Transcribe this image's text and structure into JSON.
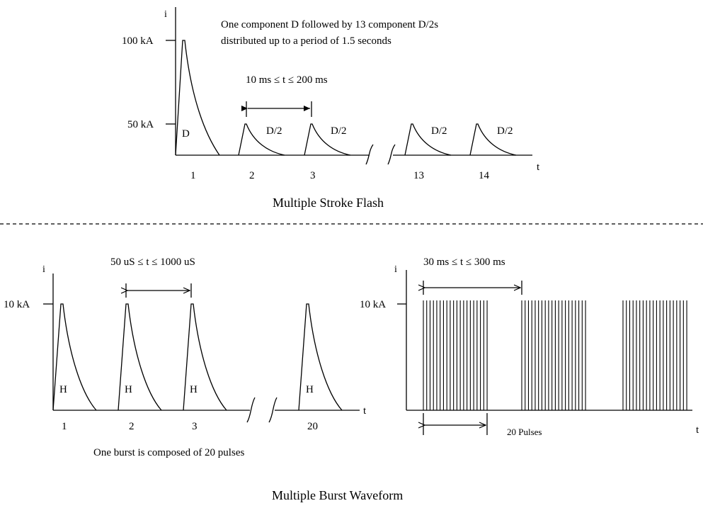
{
  "top_panel": {
    "axis_y_label": "i",
    "axis_x_label": "t",
    "level_high": "100 kA",
    "level_low": "50 kA",
    "description_line1": "One component D followed by 13 component D/2s",
    "description_line2": "distributed up to a period of 1.5 seconds",
    "interval_label": "10 ms ≤ t ≤ 200 ms",
    "first_pulse_label": "D",
    "pulse_labels": [
      "D/2",
      "D/2",
      "D/2",
      "D/2"
    ],
    "ticks": [
      "1",
      "2",
      "3",
      "13",
      "14"
    ],
    "caption": "Multiple Stroke Flash"
  },
  "bottom_left_panel": {
    "axis_y_label": "i",
    "axis_x_label": "t",
    "level": "10 kA",
    "interval_label": "50 uS ≤ t ≤ 1000 uS",
    "pulse_labels": [
      "H",
      "H",
      "H",
      "H"
    ],
    "ticks": [
      "1",
      "2",
      "3",
      "20"
    ],
    "note": "One burst is composed of 20 pulses"
  },
  "bottom_right_panel": {
    "axis_y_label": "i",
    "axis_x_label": "t",
    "level": "10 kA",
    "interval_label": "30 ms ≤ t ≤ 300 ms",
    "pulses_label": "20 Pulses"
  },
  "caption_bottom": "Multiple Burst Waveform"
}
